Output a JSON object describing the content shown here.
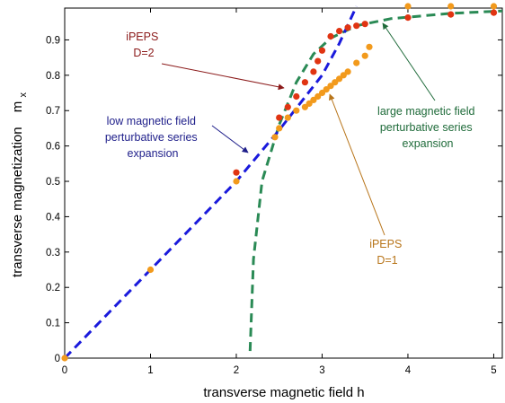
{
  "chart_data": {
    "type": "line",
    "xlabel": "transverse magnetic field  h",
    "ylabel": "transverse magnetization",
    "ylabel_symbol": "m",
    "ylabel_subscript": "x",
    "xlim": [
      0,
      5.1
    ],
    "ylim": [
      0,
      0.99
    ],
    "x_ticks": [
      0,
      1,
      2,
      3,
      4,
      5
    ],
    "y_ticks": [
      0,
      0.1,
      0.2,
      0.3,
      0.4,
      0.5,
      0.6,
      0.7,
      0.8,
      0.9
    ],
    "grid": false,
    "series": [
      {
        "color": "#f29a1c",
        "style": "markers",
        "points": [
          [
            0,
            0
          ],
          [
            1,
            0.25
          ],
          [
            2,
            0.5
          ],
          [
            2.45,
            0.625
          ],
          [
            2.5,
            0.65
          ],
          [
            2.6,
            0.68
          ],
          [
            2.7,
            0.7
          ],
          [
            2.8,
            0.71
          ],
          [
            2.85,
            0.72
          ],
          [
            2.9,
            0.73
          ],
          [
            2.95,
            0.74
          ],
          [
            3.0,
            0.75
          ],
          [
            3.05,
            0.76
          ],
          [
            3.1,
            0.77
          ],
          [
            3.15,
            0.78
          ],
          [
            3.2,
            0.79
          ],
          [
            3.25,
            0.8
          ],
          [
            3.3,
            0.81
          ],
          [
            3.4,
            0.835
          ],
          [
            3.5,
            0.855
          ],
          [
            3.55,
            0.88
          ],
          [
            4.0,
            0.995
          ],
          [
            4.5,
            0.995
          ],
          [
            5.0,
            0.995
          ]
        ]
      },
      {
        "color": "#e03412",
        "style": "markers",
        "points": [
          [
            2.0,
            0.525
          ],
          [
            2.5,
            0.68
          ],
          [
            2.6,
            0.71
          ],
          [
            2.7,
            0.74
          ],
          [
            2.8,
            0.78
          ],
          [
            2.9,
            0.81
          ],
          [
            2.95,
            0.84
          ],
          [
            3.0,
            0.87
          ],
          [
            3.1,
            0.91
          ],
          [
            3.2,
            0.925
          ],
          [
            3.3,
            0.935
          ],
          [
            3.4,
            0.94
          ],
          [
            3.5,
            0.945
          ],
          [
            4.0,
            0.963
          ],
          [
            4.5,
            0.972
          ],
          [
            5.0,
            0.977
          ]
        ]
      },
      {
        "color": "#1a1adc",
        "style": "dashed",
        "points": [
          [
            0,
            0
          ],
          [
            1,
            0.25
          ],
          [
            2,
            0.5
          ],
          [
            2.5,
            0.645
          ],
          [
            3.0,
            0.8
          ],
          [
            3.2,
            0.89
          ],
          [
            3.4,
            0.995
          ]
        ]
      },
      {
        "color": "#2a8a55",
        "style": "dashed",
        "points": [
          [
            2.16,
            0.02
          ],
          [
            2.2,
            0.28
          ],
          [
            2.3,
            0.5
          ],
          [
            2.5,
            0.66
          ],
          [
            2.7,
            0.78
          ],
          [
            2.9,
            0.86
          ],
          [
            3.1,
            0.905
          ],
          [
            3.4,
            0.94
          ],
          [
            3.8,
            0.96
          ],
          [
            4.5,
            0.975
          ],
          [
            5.1,
            0.982
          ]
        ]
      }
    ],
    "annotations": [
      {
        "lines": [
          "iPEPS",
          "D=2"
        ],
        "color": "#8b1a1a"
      },
      {
        "lines": [
          "iPEPS",
          "D=1"
        ],
        "color": "#b8751a"
      },
      {
        "lines": [
          "low magnetic field",
          "perturbative series",
          "expansion"
        ],
        "color": "#1e1e8a"
      },
      {
        "lines": [
          "large magnetic field",
          "perturbative series",
          "expansion"
        ],
        "color": "#1f6b3a"
      }
    ]
  }
}
